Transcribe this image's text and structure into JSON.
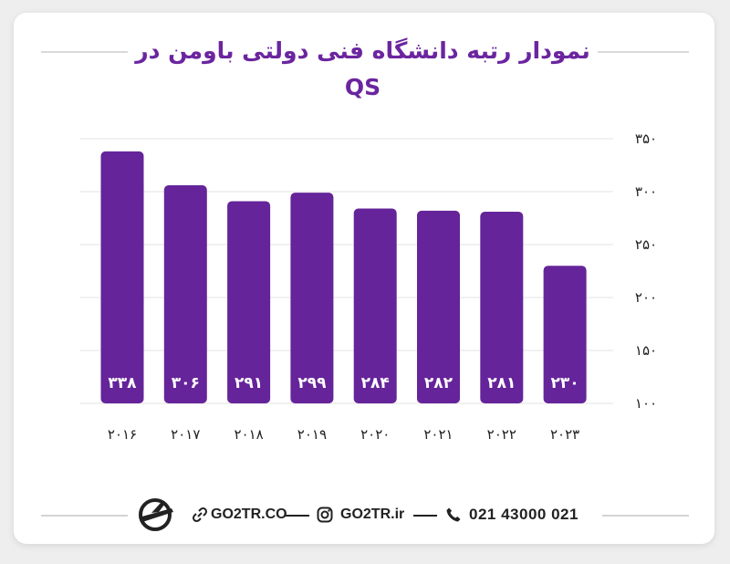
{
  "title": "نمودار رتبه دانشگاه فنی دولتی باومن در QS",
  "chart_data": {
    "type": "bar",
    "categories": [
      "۲۰۱۶",
      "۲۰۱۷",
      "۲۰۱۸",
      "۲۰۱۹",
      "۲۰۲۰",
      "۲۰۲۱",
      "۲۰۲۲",
      "۲۰۲۳"
    ],
    "values": [
      338,
      306,
      291,
      299,
      284,
      282,
      281,
      230
    ],
    "value_labels": [
      "۳۳۸",
      "۳۰۶",
      "۲۹۱",
      "۲۹۹",
      "۲۸۴",
      "۲۸۲",
      "۲۸۱",
      "۲۳۰"
    ],
    "yticks": [
      100,
      150,
      200,
      250,
      300,
      350
    ],
    "ytick_labels": [
      "۱۰۰",
      "۱۵۰",
      "۲۰۰",
      "۲۵۰",
      "۳۰۰",
      "۳۵۰"
    ],
    "ylim": [
      100,
      350
    ],
    "grid": true,
    "y_axis_side": "right",
    "bar_color": "#65249a",
    "value_label_color": "#ffffff"
  },
  "footer": {
    "website": "GO2TR.CO",
    "instagram": "GO2TR.ir",
    "phone": "021 43000 021",
    "icons": [
      "go2tr-logo-icon",
      "link-icon",
      "instagram-icon",
      "phone-icon"
    ]
  }
}
